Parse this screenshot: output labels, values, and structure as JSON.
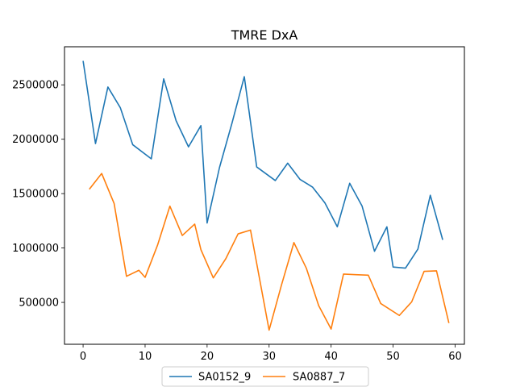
{
  "chart_data": {
    "type": "line",
    "title": "TMRE DxA",
    "xlabel": "",
    "ylabel": "",
    "xlim": [
      -3,
      61.5
    ],
    "ylim": [
      115000,
      2850000
    ],
    "xticks": [
      0,
      10,
      20,
      30,
      40,
      50,
      60
    ],
    "yticks": [
      500000,
      1000000,
      1500000,
      2000000,
      2500000
    ],
    "grid": false,
    "legend": "bottom-center, below axes, 2 columns",
    "series": [
      {
        "name": "SA0152_9",
        "color": "#1f77b4",
        "x": [
          0,
          2,
          4,
          6,
          8,
          11,
          13,
          15,
          17,
          19,
          20,
          22,
          24,
          26,
          28,
          31,
          33,
          35,
          37,
          39,
          41,
          43,
          45,
          47,
          49,
          50,
          52,
          54,
          56,
          58
        ],
        "y": [
          2720000,
          1960000,
          2480000,
          2290000,
          1950000,
          1820000,
          2555000,
          2170000,
          1930000,
          2125000,
          1230000,
          1740000,
          2145000,
          2575000,
          1745000,
          1620000,
          1780000,
          1630000,
          1560000,
          1415000,
          1195000,
          1595000,
          1385000,
          970000,
          1195000,
          825000,
          815000,
          990000,
          1485000,
          1075000
        ]
      },
      {
        "name": "SA0887_7",
        "color": "#ff7f0e",
        "x": [
          1,
          3,
          5,
          7,
          9,
          10,
          12,
          14,
          16,
          18,
          19,
          21,
          23,
          25,
          27,
          30,
          32,
          34,
          36,
          38,
          40,
          42,
          44,
          46,
          48,
          51,
          53,
          55,
          57,
          59
        ],
        "y": [
          1540000,
          1685000,
          1410000,
          740000,
          795000,
          730000,
          1025000,
          1385000,
          1115000,
          1220000,
          985000,
          725000,
          900000,
          1130000,
          1165000,
          245000,
          660000,
          1050000,
          815000,
          470000,
          255000,
          760000,
          755000,
          750000,
          490000,
          380000,
          505000,
          785000,
          790000,
          310000
        ]
      }
    ]
  }
}
